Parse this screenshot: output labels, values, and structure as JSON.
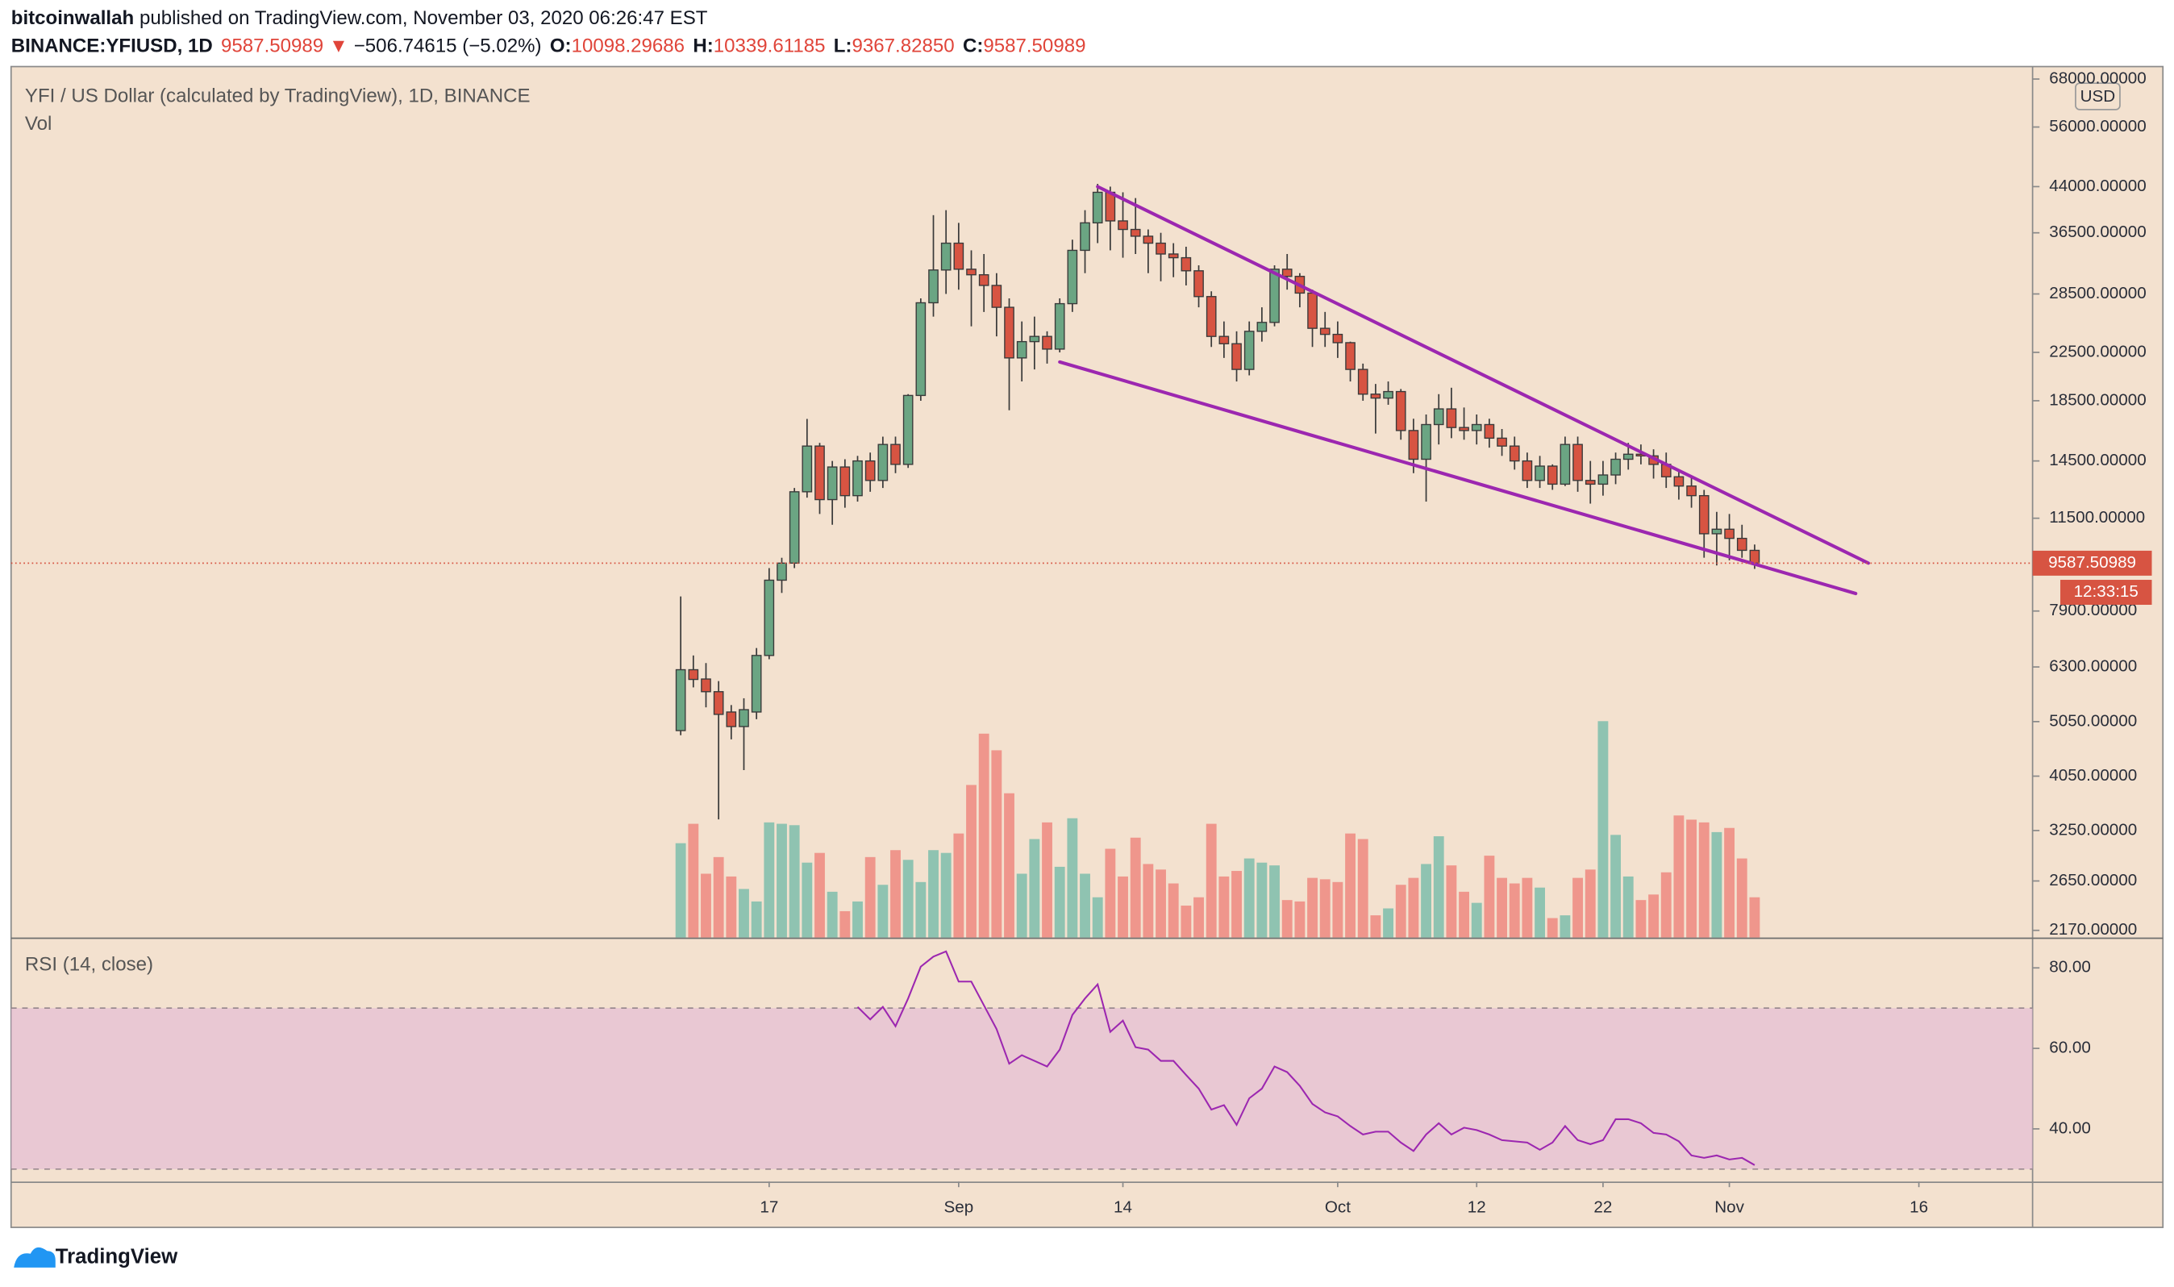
{
  "header": {
    "author": "bitcoinwallah",
    "published": "published on TradingView.com, November 03, 2020 06:26:47 EST",
    "symbol": "BINANCE:YFIUSD, 1D",
    "price": "9587.50989",
    "arrow": "▼",
    "change": "−506.74615 (−5.02%)",
    "o_label": "O:",
    "o": "10098.29686",
    "h_label": "H:",
    "h": "10339.61185",
    "l_label": "L:",
    "l": "9367.82850",
    "c_label": "C:",
    "c": "9587.50989"
  },
  "chart_data": [
    {
      "type": "candlestick",
      "title": "YFI / US Dollar (calculated by TradingView), 1D, BINANCE",
      "currency": "USD",
      "x": [
        "2020-08-10",
        "2020-08-11",
        "2020-08-12",
        "2020-08-13",
        "2020-08-14",
        "2020-08-15",
        "2020-08-16",
        "2020-08-17",
        "2020-08-18",
        "2020-08-19",
        "2020-08-20",
        "2020-08-21",
        "2020-08-22",
        "2020-08-23",
        "2020-08-24",
        "2020-08-25",
        "2020-08-26",
        "2020-08-27",
        "2020-08-28",
        "2020-08-29",
        "2020-08-30",
        "2020-08-31",
        "2020-09-01",
        "2020-09-02",
        "2020-09-03",
        "2020-09-04",
        "2020-09-05",
        "2020-09-06",
        "2020-09-07",
        "2020-09-08",
        "2020-09-09",
        "2020-09-10",
        "2020-09-11",
        "2020-09-12",
        "2020-09-13",
        "2020-09-14",
        "2020-09-15",
        "2020-09-16",
        "2020-09-17",
        "2020-09-18",
        "2020-09-19",
        "2020-09-20",
        "2020-09-21",
        "2020-09-22",
        "2020-09-23",
        "2020-09-24",
        "2020-09-25",
        "2020-09-26",
        "2020-09-27",
        "2020-09-28",
        "2020-09-29",
        "2020-09-30",
        "2020-10-01",
        "2020-10-02",
        "2020-10-03",
        "2020-10-04",
        "2020-10-05",
        "2020-10-06",
        "2020-10-07",
        "2020-10-08",
        "2020-10-09",
        "2020-10-10",
        "2020-10-11",
        "2020-10-12",
        "2020-10-13",
        "2020-10-14",
        "2020-10-15",
        "2020-10-16",
        "2020-10-17",
        "2020-10-18",
        "2020-10-19",
        "2020-10-20",
        "2020-10-21",
        "2020-10-22",
        "2020-10-23",
        "2020-10-24",
        "2020-10-25",
        "2020-10-26",
        "2020-10-27",
        "2020-10-28",
        "2020-10-29",
        "2020-10-30",
        "2020-10-31",
        "2020-11-01",
        "2020-11-02",
        "2020-11-03"
      ],
      "open": [
        4870,
        6230,
        6000,
        5700,
        5250,
        4950,
        5250,
        6600,
        8950,
        9590,
        12800,
        15400,
        12400,
        14150,
        12600,
        14500,
        13400,
        15500,
        14300,
        18900,
        27500,
        31400,
        35000,
        31500,
        30800,
        29500,
        27000,
        22000,
        23500,
        24000,
        22800,
        27400,
        34000,
        38000,
        43000,
        38300,
        37000,
        36000,
        35000,
        33500,
        33000,
        31300,
        28200,
        24000,
        23300,
        21000,
        24500,
        25400,
        31500,
        30600,
        28600,
        24800,
        24200,
        23400,
        21000,
        19000,
        18700,
        19200,
        16400,
        14600,
        16800,
        17900,
        16600,
        16400,
        16800,
        15900,
        15400,
        14500,
        13400,
        14200,
        13200,
        15500,
        13400,
        13200,
        13700,
        14600,
        14900,
        14800,
        14300,
        13600,
        13100,
        12600,
        10800,
        11000,
        10600,
        10098.29686
      ],
      "high": [
        8380,
        6600,
        6400,
        5950,
        5400,
        5550,
        6800,
        9400,
        9800,
        13000,
        17190,
        15600,
        14500,
        14600,
        14800,
        15000,
        16000,
        16000,
        19000,
        28000,
        39200,
        40000,
        38000,
        34000,
        33500,
        31000,
        28000,
        25500,
        26000,
        24500,
        28000,
        35500,
        40000,
        44500,
        44000,
        43000,
        42000,
        37000,
        36500,
        35000,
        34500,
        32000,
        28800,
        25500,
        24500,
        25500,
        27000,
        32000,
        33500,
        31000,
        29000,
        26500,
        25500,
        23500,
        21500,
        19800,
        20000,
        19400,
        17200,
        17500,
        19000,
        19500,
        18000,
        17500,
        17200,
        16500,
        16000,
        15000,
        14800,
        14300,
        16000,
        16000,
        14500,
        14500,
        15000,
        15600,
        15500,
        15200,
        15000,
        14000,
        13600,
        12900,
        11800,
        11700,
        11200,
        10339.61185
      ],
      "low": [
        4780,
        5800,
        5350,
        3400,
        4700,
        4150,
        5100,
        6500,
        8500,
        9400,
        12500,
        11700,
        11200,
        12000,
        12300,
        12800,
        13000,
        13800,
        14100,
        18500,
        26000,
        28500,
        29000,
        25000,
        26500,
        24000,
        17800,
        20000,
        21000,
        21500,
        22500,
        26500,
        31000,
        35000,
        34000,
        33000,
        33500,
        31000,
        30000,
        30500,
        29500,
        27000,
        23000,
        22000,
        20000,
        20500,
        23500,
        25000,
        29000,
        27000,
        23000,
        23000,
        22000,
        20000,
        18500,
        16200,
        18200,
        15800,
        13800,
        12300,
        15500,
        15900,
        15800,
        15500,
        15300,
        14800,
        14000,
        13000,
        13000,
        12900,
        13100,
        12800,
        12200,
        12600,
        13200,
        14000,
        14300,
        13500,
        13000,
        12400,
        12000,
        9800,
        9500,
        9700,
        9800,
        9367.8285
      ],
      "close": [
        6230,
        5990,
        5700,
        5200,
        4950,
        5300,
        6600,
        8950,
        9590,
        12800,
        15400,
        12400,
        14150,
        12600,
        14500,
        13400,
        15500,
        14300,
        18900,
        27500,
        31400,
        35000,
        31500,
        30800,
        29500,
        27000,
        22000,
        23500,
        24000,
        22800,
        27400,
        34000,
        38000,
        43000,
        38300,
        37000,
        36000,
        35000,
        33500,
        33000,
        31300,
        28200,
        24000,
        23300,
        21000,
        24500,
        25400,
        31500,
        30600,
        28600,
        24800,
        24200,
        23400,
        21000,
        19000,
        18700,
        19200,
        16400,
        14600,
        16800,
        17900,
        16600,
        16400,
        16800,
        15900,
        15400,
        14500,
        13400,
        14200,
        13200,
        15500,
        13400,
        13200,
        13700,
        14600,
        14900,
        14800,
        14300,
        13600,
        13100,
        12600,
        10800,
        11000,
        10600,
        10100,
        9587.50989
      ],
      "up_color": "#6ba583",
      "down_color": "#d75442",
      "wick_color": "#3a3a3a",
      "log_scale": true,
      "ylim": [
        2108,
        71520
      ],
      "yticks": [
        {
          "value": 2170,
          "label": "2170.00000"
        },
        {
          "value": 2650,
          "label": "2650.00000"
        },
        {
          "value": 3250,
          "label": "3250.00000"
        },
        {
          "value": 4050,
          "label": "4050.00000"
        },
        {
          "value": 5050,
          "label": "5050.00000"
        },
        {
          "value": 6300,
          "label": "6300.00000"
        },
        {
          "value": 7900,
          "label": "7900.00000"
        },
        {
          "value": 11500,
          "label": "11500.00000"
        },
        {
          "value": 14500,
          "label": "14500.00000"
        },
        {
          "value": 18500,
          "label": "18500.00000"
        },
        {
          "value": 22500,
          "label": "22500.00000"
        },
        {
          "value": 28500,
          "label": "28500.00000"
        },
        {
          "value": 36500,
          "label": "36500.00000"
        },
        {
          "value": 44000,
          "label": "44000.00000"
        },
        {
          "value": 56000,
          "label": "56000.00000"
        },
        {
          "value": 68000,
          "label": "68000.00000"
        }
      ],
      "xlim": [
        "2020-06-18",
        "2020-11-25"
      ],
      "xticks": [
        {
          "value": "2020-08-17",
          "label": "17"
        },
        {
          "value": "2020-09-01",
          "label": "Sep"
        },
        {
          "value": "2020-09-14",
          "label": "14"
        },
        {
          "value": "2020-10-01",
          "label": "Oct"
        },
        {
          "value": "2020-10-12",
          "label": "12"
        },
        {
          "value": "2020-10-22",
          "label": "22"
        },
        {
          "value": "2020-11-01",
          "label": "Nov"
        },
        {
          "value": "2020-11-16",
          "label": "16"
        }
      ],
      "last_price": 9587.50989,
      "last_price_color": "#d75442",
      "countdown": "12:33:15",
      "trendlines": [
        {
          "x": [
            "2020-09-12",
            "2020-11-12"
          ],
          "y": [
            44000,
            9590
          ],
          "color": "#9c27b0"
        },
        {
          "x": [
            "2020-09-09",
            "2020-11-11"
          ],
          "y": [
            21640,
            8480
          ],
          "color": "#9c27b0"
        }
      ]
    },
    {
      "type": "bar",
      "title": "Vol",
      "x": [
        "2020-08-10",
        "2020-08-11",
        "2020-08-12",
        "2020-08-13",
        "2020-08-14",
        "2020-08-15",
        "2020-08-16",
        "2020-08-17",
        "2020-08-18",
        "2020-08-19",
        "2020-08-20",
        "2020-08-21",
        "2020-08-22",
        "2020-08-23",
        "2020-08-24",
        "2020-08-25",
        "2020-08-26",
        "2020-08-27",
        "2020-08-28",
        "2020-08-29",
        "2020-08-30",
        "2020-08-31",
        "2020-09-01",
        "2020-09-02",
        "2020-09-03",
        "2020-09-04",
        "2020-09-05",
        "2020-09-06",
        "2020-09-07",
        "2020-09-08",
        "2020-09-09",
        "2020-09-10",
        "2020-09-11",
        "2020-09-12",
        "2020-09-13",
        "2020-09-14",
        "2020-09-15",
        "2020-09-16",
        "2020-09-17",
        "2020-09-18",
        "2020-09-19",
        "2020-09-20",
        "2020-09-21",
        "2020-09-22",
        "2020-09-23",
        "2020-09-24",
        "2020-09-25",
        "2020-09-26",
        "2020-09-27",
        "2020-09-28",
        "2020-09-29",
        "2020-09-30",
        "2020-10-01",
        "2020-10-02",
        "2020-10-03",
        "2020-10-04",
        "2020-10-05",
        "2020-10-06",
        "2020-10-07",
        "2020-10-08",
        "2020-10-09",
        "2020-10-10",
        "2020-10-11",
        "2020-10-12",
        "2020-10-13",
        "2020-10-14",
        "2020-10-15",
        "2020-10-16",
        "2020-10-17",
        "2020-10-18",
        "2020-10-19",
        "2020-10-20",
        "2020-10-21",
        "2020-10-22",
        "2020-10-23",
        "2020-10-24",
        "2020-10-25",
        "2020-10-26",
        "2020-10-27",
        "2020-10-28",
        "2020-10-29",
        "2020-10-30",
        "2020-10-31",
        "2020-11-01",
        "2020-11-02",
        "2020-11-03"
      ],
      "values": [
        68,
        82,
        46,
        58,
        44,
        35,
        26,
        83,
        82,
        81,
        54,
        61,
        33,
        19,
        26,
        58,
        38,
        63,
        56,
        40,
        63,
        61,
        75,
        110,
        147,
        135,
        104,
        46,
        71,
        83,
        51,
        86,
        46,
        29,
        64,
        44,
        72,
        53,
        49,
        39,
        23,
        29,
        82,
        44,
        48,
        57,
        54,
        52,
        27,
        26,
        43,
        42,
        40,
        75,
        71,
        16,
        21,
        38,
        43,
        53,
        73,
        52,
        33,
        25,
        59,
        43,
        39,
        43,
        36,
        14,
        16,
        43,
        49,
        156,
        74,
        44,
        27,
        31,
        47,
        88,
        85,
        83,
        76,
        79,
        57,
        29
      ],
      "up_color": "#8fc3b1",
      "down_color": "#ef968c",
      "ylim": [
        0,
        628
      ]
    },
    {
      "type": "line",
      "title": "RSI (14, close)",
      "x": [
        "2020-08-10",
        "2020-08-11",
        "2020-08-12",
        "2020-08-13",
        "2020-08-14",
        "2020-08-15",
        "2020-08-16",
        "2020-08-17",
        "2020-08-18",
        "2020-08-19",
        "2020-08-20",
        "2020-08-21",
        "2020-08-22",
        "2020-08-23",
        "2020-08-24",
        "2020-08-25",
        "2020-08-26",
        "2020-08-27",
        "2020-08-28",
        "2020-08-29",
        "2020-08-30",
        "2020-08-31",
        "2020-09-01",
        "2020-09-02",
        "2020-09-03",
        "2020-09-04",
        "2020-09-05",
        "2020-09-06",
        "2020-09-07",
        "2020-09-08",
        "2020-09-09",
        "2020-09-10",
        "2020-09-11",
        "2020-09-12",
        "2020-09-13",
        "2020-09-14",
        "2020-09-15",
        "2020-09-16",
        "2020-09-17",
        "2020-09-18",
        "2020-09-19",
        "2020-09-20",
        "2020-09-21",
        "2020-09-22",
        "2020-09-23",
        "2020-09-24",
        "2020-09-25",
        "2020-09-26",
        "2020-09-27",
        "2020-09-28",
        "2020-09-29",
        "2020-09-30",
        "2020-10-01",
        "2020-10-02",
        "2020-10-03",
        "2020-10-04",
        "2020-10-05",
        "2020-10-06",
        "2020-10-07",
        "2020-10-08",
        "2020-10-09",
        "2020-10-10",
        "2020-10-11",
        "2020-10-12",
        "2020-10-13",
        "2020-10-14",
        "2020-10-15",
        "2020-10-16",
        "2020-10-17",
        "2020-10-18",
        "2020-10-19",
        "2020-10-20",
        "2020-10-21",
        "2020-10-22",
        "2020-10-23",
        "2020-10-24",
        "2020-10-25",
        "2020-10-26",
        "2020-10-27",
        "2020-10-28",
        "2020-10-29",
        "2020-10-30",
        "2020-10-31",
        "2020-11-01",
        "2020-11-02",
        "2020-11-03"
      ],
      "values": [
        null,
        null,
        null,
        null,
        null,
        null,
        null,
        null,
        null,
        null,
        null,
        null,
        null,
        null,
        70.3,
        67.2,
        70.3,
        65.5,
        72.4,
        80.3,
        82.8,
        84.1,
        76.6,
        76.6,
        70.7,
        64.8,
        56.2,
        58.3,
        56.9,
        55.5,
        59.7,
        68.3,
        72.4,
        75.9,
        64.1,
        66.9,
        60.3,
        59.7,
        56.9,
        56.9,
        53.4,
        50,
        44.8,
        45.9,
        41,
        47.6,
        50,
        55.5,
        54.1,
        50.7,
        46.2,
        44.1,
        43.1,
        40.7,
        38.6,
        39.3,
        39.3,
        36.6,
        34.5,
        38.6,
        41.4,
        38.6,
        40.3,
        39.7,
        38.6,
        37.2,
        36.9,
        36.6,
        34.8,
        36.6,
        40.7,
        37.2,
        36.2,
        37.2,
        42.4,
        42.4,
        41.4,
        39,
        38.6,
        36.9,
        33.4,
        32.8,
        33.4,
        32.4,
        32.8,
        31
      ],
      "color": "#9c27b0",
      "bands": [
        30,
        70
      ],
      "band_color": "#e3b8d6",
      "ylim": [
        26.9,
        87.2
      ],
      "yticks": [
        {
          "value": 40,
          "label": "40.00"
        },
        {
          "value": 60,
          "label": "60.00"
        },
        {
          "value": 80,
          "label": "80.00"
        }
      ]
    }
  ],
  "footer": {
    "logo": "TradingView"
  }
}
